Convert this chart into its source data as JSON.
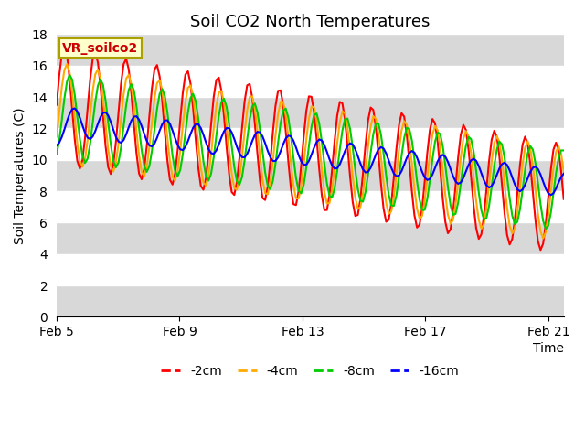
{
  "title": "Soil CO2 North Temperatures",
  "ylabel": "Soil Temperatures (C)",
  "xlabel": "Time",
  "annotation": "VR_soilco2",
  "ylim": [
    0,
    18
  ],
  "yticks": [
    0,
    2,
    4,
    6,
    8,
    10,
    12,
    14,
    16,
    18
  ],
  "xtick_labels": [
    "Feb 5",
    "Feb 9",
    "Feb 13",
    "Feb 17",
    "Feb 21"
  ],
  "xtick_positions": [
    0,
    4,
    8,
    12,
    16
  ],
  "legend_entries": [
    "-2cm",
    "-4cm",
    "-8cm",
    "-16cm"
  ],
  "line_colors": [
    "#ff0000",
    "#ffaa00",
    "#00cc00",
    "#0000ff"
  ],
  "background_bands": [
    {
      "ymin": 0,
      "ymax": 2,
      "color": "#d8d8d8"
    },
    {
      "ymin": 2,
      "ymax": 4,
      "color": "#ffffff"
    },
    {
      "ymin": 4,
      "ymax": 6,
      "color": "#d8d8d8"
    },
    {
      "ymin": 6,
      "ymax": 8,
      "color": "#ffffff"
    },
    {
      "ymin": 8,
      "ymax": 10,
      "color": "#d8d8d8"
    },
    {
      "ymin": 10,
      "ymax": 12,
      "color": "#ffffff"
    },
    {
      "ymin": 12,
      "ymax": 14,
      "color": "#d8d8d8"
    },
    {
      "ymin": 14,
      "ymax": 16,
      "color": "#ffffff"
    },
    {
      "ymin": 16,
      "ymax": 18,
      "color": "#d8d8d8"
    }
  ],
  "title_fontsize": 13,
  "label_fontsize": 10,
  "tick_fontsize": 10,
  "annotation_fontsize": 10,
  "legend_fontsize": 10
}
